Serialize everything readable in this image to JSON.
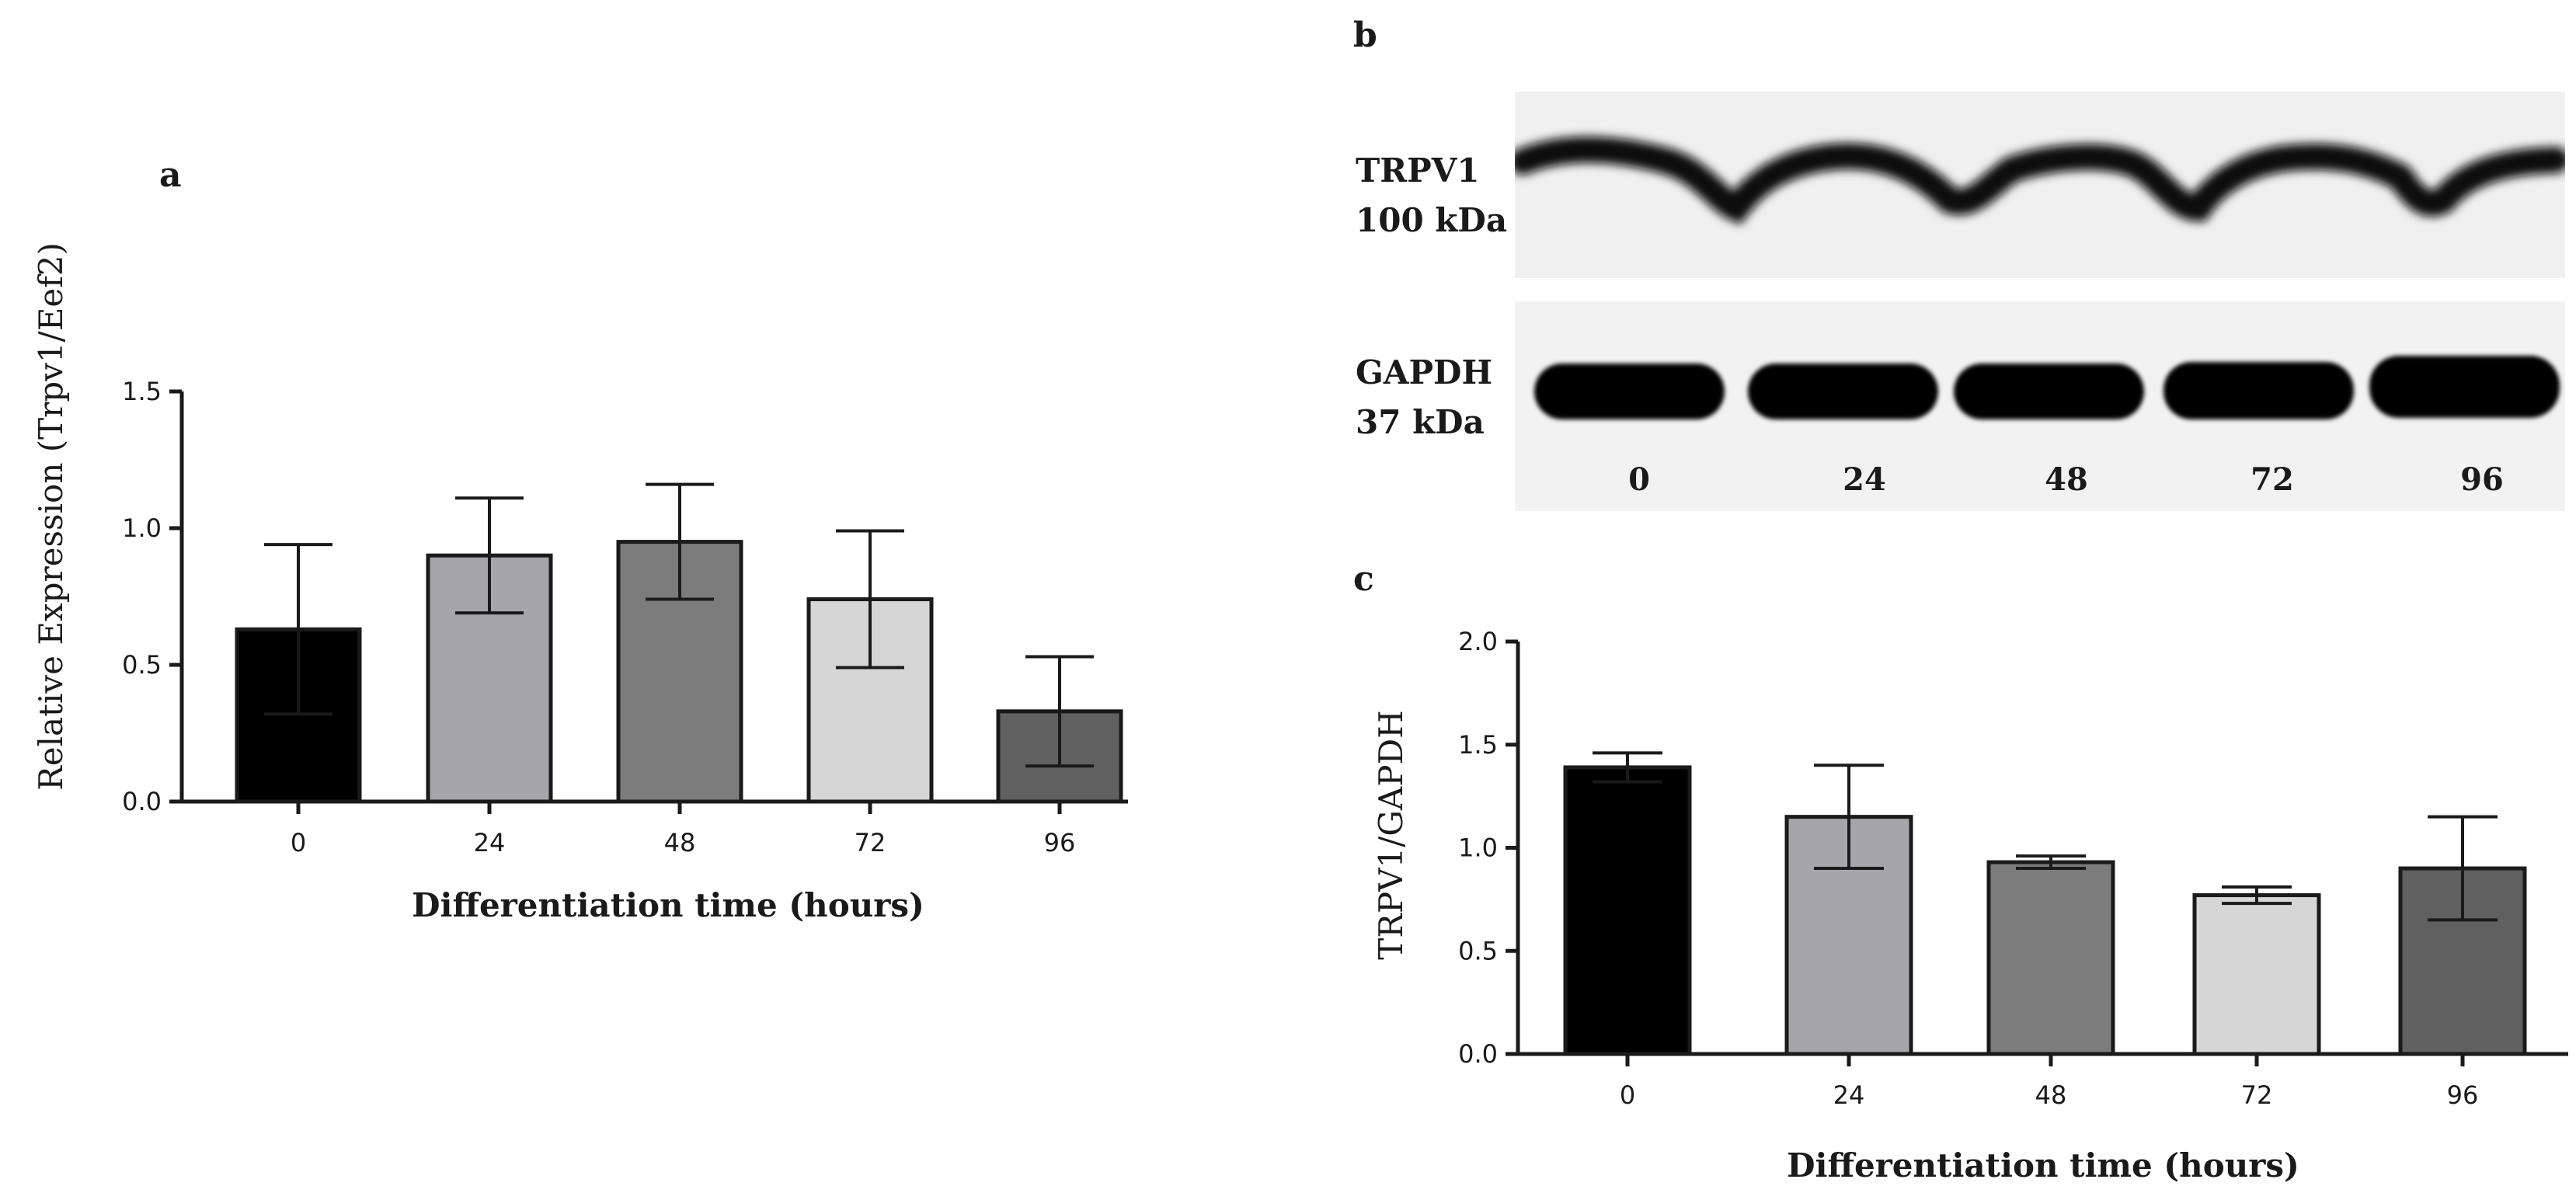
{
  "panel_letters": {
    "a": "a",
    "b": "b",
    "c": "c"
  },
  "blot": {
    "bands": [
      {
        "name": "TRPV1",
        "size": "100 kDa"
      },
      {
        "name": "GAPDH",
        "size": "37 kDa"
      }
    ],
    "lanes": [
      "0",
      "24",
      "48",
      "72",
      "96"
    ]
  },
  "chart_data": [
    {
      "type": "bar",
      "panel": "a",
      "categories": [
        "0",
        "24",
        "48",
        "72",
        "96"
      ],
      "values": [
        0.63,
        0.9,
        0.95,
        0.74,
        0.33
      ],
      "errors": [
        0.31,
        0.21,
        0.21,
        0.25,
        0.2
      ],
      "colors": [
        "#000000",
        "#a5a5aa",
        "#7c7c7c",
        "#d6d6d6",
        "#606060"
      ],
      "xlabel": "Differentiation time (hours)",
      "ylabel": "Relative Expression (Trpv1/Eef2)",
      "ylim": [
        0,
        1.5
      ],
      "yticks": [
        0.0,
        0.5,
        1.0,
        1.5
      ],
      "ytick_labels": [
        "0.0",
        "0.5",
        "1.0",
        "1.5"
      ],
      "grid": false
    },
    {
      "type": "bar",
      "panel": "c",
      "categories": [
        "0",
        "24",
        "48",
        "72",
        "96"
      ],
      "values": [
        1.39,
        1.15,
        0.93,
        0.77,
        0.9
      ],
      "errors": [
        0.07,
        0.25,
        0.03,
        0.04,
        0.25
      ],
      "colors": [
        "#000000",
        "#a5a5aa",
        "#7c7c7c",
        "#d6d6d6",
        "#606060"
      ],
      "xlabel": "Differentiation time (hours)",
      "ylabel": "TRPV1/GAPDH",
      "ylim": [
        0,
        2.0
      ],
      "yticks": [
        0.0,
        0.5,
        1.0,
        1.5,
        2.0
      ],
      "ytick_labels": [
        "0.0",
        "0.5",
        "1.0",
        "1.5",
        "2.0"
      ],
      "grid": false
    }
  ]
}
